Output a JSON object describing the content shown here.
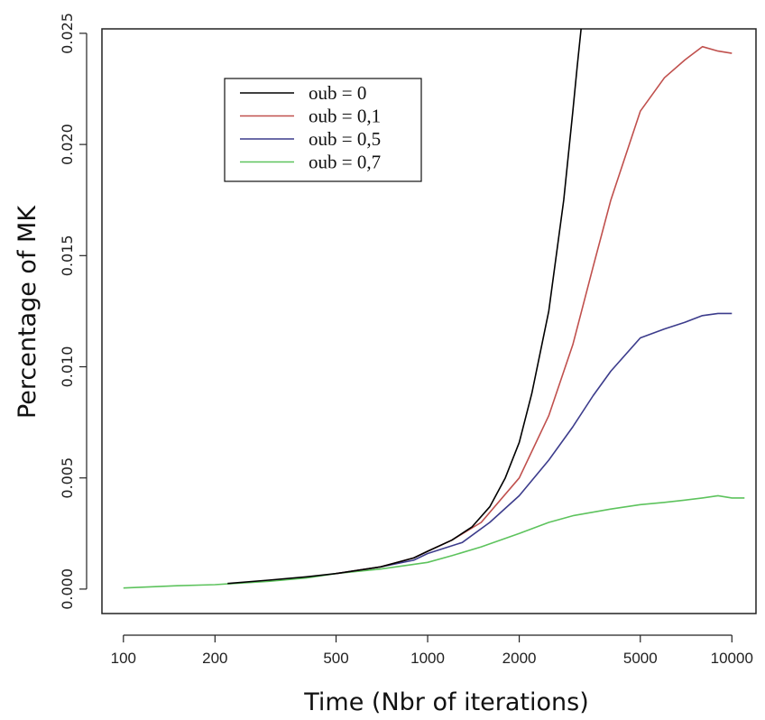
{
  "chart_data": {
    "type": "line",
    "xscale": "log",
    "xlabel": "Time (Nbr of iterations)",
    "ylabel": "Percentage of MK",
    "xlim": [
      85,
      12000
    ],
    "ylim": [
      -0.0011,
      0.0252
    ],
    "xticks": [
      {
        "value": 100,
        "label": "100"
      },
      {
        "value": 200,
        "label": "200"
      },
      {
        "value": 500,
        "label": "500"
      },
      {
        "value": 1000,
        "label": "1000"
      },
      {
        "value": 2000,
        "label": "2000"
      },
      {
        "value": 5000,
        "label": "5000"
      },
      {
        "value": 10000,
        "label": "10000"
      }
    ],
    "yticks": [
      {
        "value": 0,
        "label": "0.000"
      },
      {
        "value": 0.005,
        "label": "0.005"
      },
      {
        "value": 0.01,
        "label": "0.010"
      },
      {
        "value": 0.015,
        "label": "0.015"
      },
      {
        "value": 0.02,
        "label": "0.020"
      },
      {
        "value": 0.025,
        "label": "0.025"
      }
    ],
    "grid": false,
    "legend_position": "top-left",
    "series": [
      {
        "name": "oub = 0",
        "color": "#000000",
        "points": [
          [
            220,
            0.00025
          ],
          [
            300,
            0.0004
          ],
          [
            400,
            0.00055
          ],
          [
            500,
            0.0007
          ],
          [
            700,
            0.001
          ],
          [
            900,
            0.0014
          ],
          [
            1000,
            0.0017
          ],
          [
            1200,
            0.0022
          ],
          [
            1400,
            0.0028
          ],
          [
            1600,
            0.0037
          ],
          [
            1800,
            0.005
          ],
          [
            2000,
            0.0066
          ],
          [
            2200,
            0.0088
          ],
          [
            2500,
            0.0125
          ],
          [
            2800,
            0.0175
          ],
          [
            3000,
            0.0215
          ],
          [
            3100,
            0.0235
          ],
          [
            3200,
            0.0253
          ]
        ]
      },
      {
        "name": "oub = 0,1",
        "color": "#c0504d",
        "points": [
          [
            500,
            0.0007
          ],
          [
            700,
            0.001
          ],
          [
            900,
            0.0014
          ],
          [
            1000,
            0.0017
          ],
          [
            1200,
            0.0022
          ],
          [
            1500,
            0.003
          ],
          [
            2000,
            0.005
          ],
          [
            2500,
            0.0078
          ],
          [
            3000,
            0.011
          ],
          [
            3500,
            0.0145
          ],
          [
            4000,
            0.0175
          ],
          [
            5000,
            0.0215
          ],
          [
            6000,
            0.023
          ],
          [
            7000,
            0.0238
          ],
          [
            8000,
            0.0244
          ],
          [
            9000,
            0.0242
          ],
          [
            10000,
            0.0241
          ]
        ]
      },
      {
        "name": "oub = 0,5",
        "color": "#3c3c8c",
        "points": [
          [
            500,
            0.0007
          ],
          [
            700,
            0.001
          ],
          [
            900,
            0.0013
          ],
          [
            1000,
            0.0016
          ],
          [
            1300,
            0.0021
          ],
          [
            1600,
            0.003
          ],
          [
            2000,
            0.0042
          ],
          [
            2500,
            0.0058
          ],
          [
            3000,
            0.0073
          ],
          [
            3500,
            0.0087
          ],
          [
            4000,
            0.0098
          ],
          [
            5000,
            0.0113
          ],
          [
            6000,
            0.0117
          ],
          [
            7000,
            0.012
          ],
          [
            8000,
            0.0123
          ],
          [
            9000,
            0.0124
          ],
          [
            10000,
            0.0124
          ]
        ]
      },
      {
        "name": "oub = 0,7",
        "color": "#5dc35d",
        "points": [
          [
            100,
            5e-05
          ],
          [
            150,
            0.00015
          ],
          [
            200,
            0.0002
          ],
          [
            300,
            0.00035
          ],
          [
            400,
            0.0005
          ],
          [
            500,
            0.0007
          ],
          [
            700,
            0.0009
          ],
          [
            1000,
            0.0012
          ],
          [
            1200,
            0.0015
          ],
          [
            1500,
            0.0019
          ],
          [
            2000,
            0.0025
          ],
          [
            2500,
            0.003
          ],
          [
            3000,
            0.0033
          ],
          [
            4000,
            0.0036
          ],
          [
            5000,
            0.0038
          ],
          [
            6000,
            0.0039
          ],
          [
            7000,
            0.004
          ],
          [
            8000,
            0.0041
          ],
          [
            9000,
            0.0042
          ],
          [
            10000,
            0.0041
          ],
          [
            11000,
            0.0041
          ]
        ]
      }
    ]
  }
}
